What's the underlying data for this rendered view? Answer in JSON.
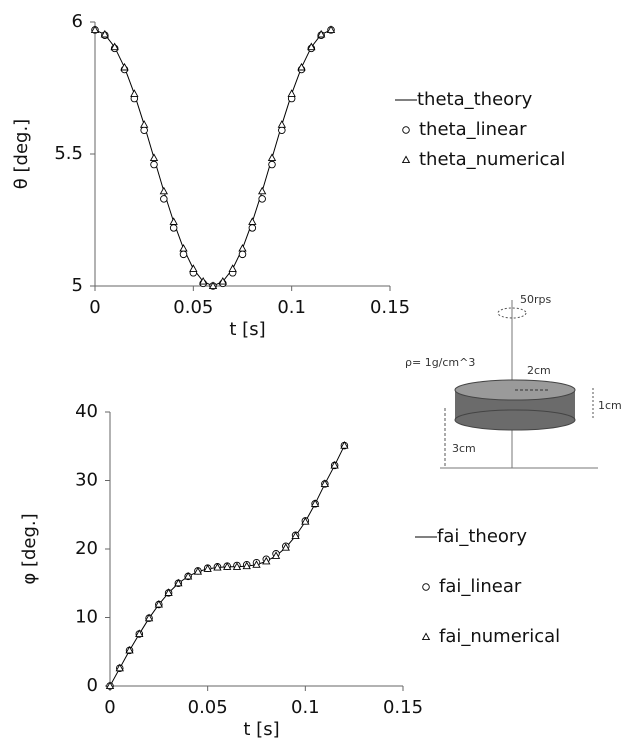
{
  "chart_data": [
    {
      "type": "line",
      "y_label": "θ [deg.]",
      "x_label": "t [s]",
      "x": [
        0,
        0.005,
        0.01,
        0.015,
        0.02,
        0.025,
        0.03,
        0.035,
        0.04,
        0.045,
        0.05,
        0.055,
        0.06,
        0.065,
        0.07,
        0.075,
        0.08,
        0.085,
        0.09,
        0.095,
        0.1,
        0.105,
        0.11,
        0.115,
        0.12
      ],
      "series": [
        {
          "name": "theta_theory",
          "marker": "line",
          "color": "#000000",
          "values": [
            5.97,
            5.953,
            5.905,
            5.828,
            5.728,
            5.611,
            5.485,
            5.359,
            5.243,
            5.142,
            5.065,
            5.017,
            5.0,
            5.017,
            5.065,
            5.142,
            5.243,
            5.359,
            5.485,
            5.611,
            5.728,
            5.828,
            5.905,
            5.953,
            5.97
          ]
        },
        {
          "name": "theta_linear",
          "marker": "circle",
          "color": "#000000",
          "values": [
            5.97,
            5.95,
            5.9,
            5.82,
            5.71,
            5.59,
            5.46,
            5.33,
            5.22,
            5.12,
            5.05,
            5.01,
            5.0,
            5.01,
            5.05,
            5.12,
            5.22,
            5.33,
            5.46,
            5.59,
            5.71,
            5.82,
            5.9,
            5.95,
            5.97
          ]
        },
        {
          "name": "theta_numerical",
          "marker": "triangle",
          "color": "#000000",
          "values": [
            5.97,
            5.953,
            5.905,
            5.828,
            5.728,
            5.611,
            5.485,
            5.359,
            5.243,
            5.142,
            5.065,
            5.017,
            5.0,
            5.017,
            5.065,
            5.142,
            5.243,
            5.359,
            5.485,
            5.611,
            5.728,
            5.828,
            5.905,
            5.953,
            5.97
          ]
        }
      ],
      "xlim": [
        0,
        0.15
      ],
      "xticks": [
        0,
        0.05,
        0.1,
        0.15
      ],
      "ylim": [
        5,
        6
      ],
      "yticks": [
        5,
        5.5,
        6
      ],
      "grid": false
    },
    {
      "type": "line",
      "y_label": "φ [deg.]",
      "x_label": "t [s]",
      "x": [
        0,
        0.005,
        0.01,
        0.015,
        0.02,
        0.025,
        0.03,
        0.035,
        0.04,
        0.045,
        0.05,
        0.055,
        0.06,
        0.065,
        0.07,
        0.075,
        0.08,
        0.085,
        0.09,
        0.095,
        0.1,
        0.105,
        0.11,
        0.115,
        0.12
      ],
      "series": [
        {
          "name": "fai_theory",
          "marker": "line",
          "color": "#000000",
          "values": [
            0,
            2.6,
            5.2,
            7.6,
            9.9,
            11.9,
            13.6,
            15.0,
            16.0,
            16.7,
            17.1,
            17.3,
            17.4,
            17.4,
            17.5,
            17.7,
            18.2,
            19.0,
            20.2,
            21.9,
            24.0,
            26.6,
            29.5,
            32.2,
            35.1
          ]
        },
        {
          "name": "fai_linear",
          "marker": "circle",
          "color": "#000000",
          "values": [
            0,
            2.6,
            5.2,
            7.6,
            9.9,
            11.9,
            13.6,
            15.0,
            16.0,
            16.8,
            17.2,
            17.4,
            17.5,
            17.6,
            17.7,
            18.0,
            18.5,
            19.3,
            20.4,
            22.0,
            24.1,
            26.6,
            29.5,
            32.2,
            35.1
          ]
        },
        {
          "name": "fai_numerical",
          "marker": "triangle",
          "color": "#000000",
          "values": [
            0,
            2.6,
            5.2,
            7.6,
            9.9,
            11.9,
            13.6,
            15.0,
            16.0,
            16.7,
            17.1,
            17.3,
            17.4,
            17.4,
            17.5,
            17.7,
            18.2,
            19.0,
            20.2,
            21.9,
            24.0,
            26.6,
            29.5,
            32.2,
            35.1
          ]
        }
      ],
      "xlim": [
        0,
        0.15
      ],
      "xticks": [
        0,
        0.05,
        0.1,
        0.15
      ],
      "ylim": [
        0,
        40
      ],
      "yticks": [
        0,
        10,
        20,
        30,
        40
      ],
      "grid": false
    }
  ],
  "diagram": {
    "rotation": "50rps",
    "density": "ρ= 1g/cm^3",
    "radius": "2cm",
    "thickness": "1cm",
    "height": "3cm"
  }
}
